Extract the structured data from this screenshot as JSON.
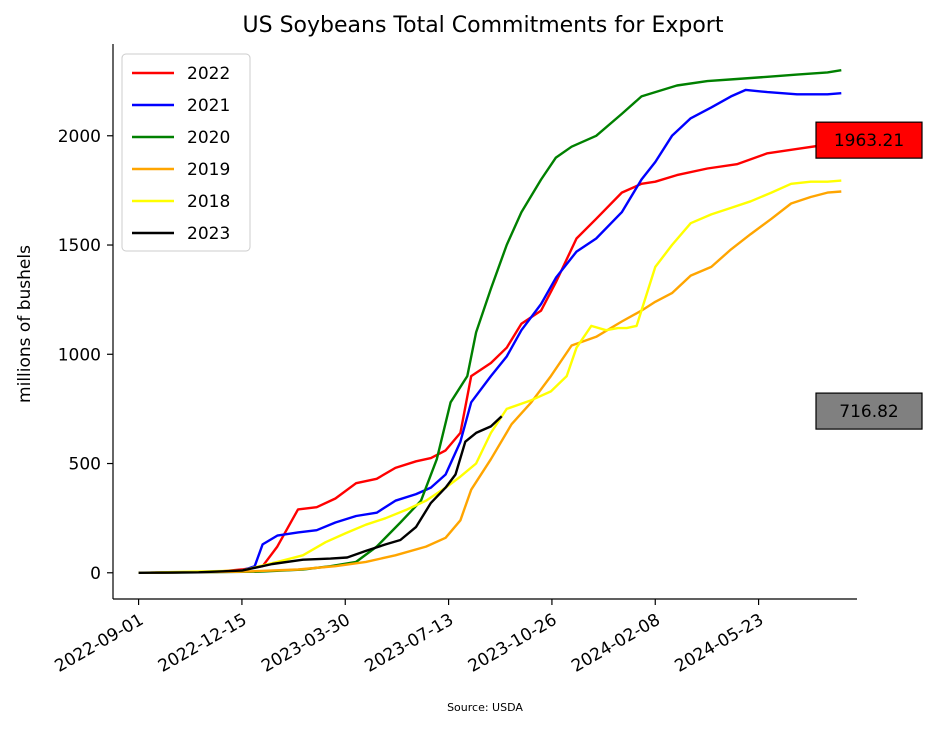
{
  "chart_data": {
    "type": "line",
    "title": "US Soybeans Total Commitments for Export",
    "ylabel": "millions of bushels",
    "xlabel": "",
    "source": "Source: USDA",
    "ylim": [
      -120,
      2420
    ],
    "xlim": [
      "2022-08-06",
      "2024-08-31"
    ],
    "yticks": [
      0,
      500,
      1000,
      1500,
      2000
    ],
    "xticks": [
      "2022-09-01",
      "2022-12-15",
      "2023-03-30",
      "2023-07-13",
      "2023-10-26",
      "2024-02-08",
      "2024-05-23"
    ],
    "grid": false,
    "legend": "top-left",
    "series": [
      {
        "name": "2022",
        "color": "#ff0000",
        "x": [
          "2022-09-01",
          "2022-10-15",
          "2022-11-20",
          "2022-12-15",
          "2023-01-05",
          "2023-01-20",
          "2023-02-10",
          "2023-03-01",
          "2023-03-20",
          "2023-04-10",
          "2023-05-01",
          "2023-05-20",
          "2023-06-10",
          "2023-06-25",
          "2023-07-10",
          "2023-07-25",
          "2023-08-05",
          "2023-08-25",
          "2023-09-10",
          "2023-09-25",
          "2023-10-15",
          "2023-10-30",
          "2023-11-20",
          "2023-12-10",
          "2024-01-05",
          "2024-01-25",
          "2024-02-08",
          "2024-03-01",
          "2024-04-01",
          "2024-05-01",
          "2024-06-01",
          "2024-07-01",
          "2024-08-01",
          "2024-08-15"
        ],
        "values": [
          0,
          2,
          5,
          15,
          30,
          120,
          290,
          300,
          340,
          410,
          430,
          480,
          510,
          525,
          560,
          640,
          900,
          960,
          1030,
          1140,
          1200,
          1330,
          1530,
          1620,
          1740,
          1780,
          1790,
          1820,
          1850,
          1870,
          1920,
          1940,
          1960,
          1965
        ]
      },
      {
        "name": "2021",
        "color": "#0000ff",
        "x": [
          "2022-09-01",
          "2022-10-15",
          "2022-11-20",
          "2022-12-15",
          "2022-12-28",
          "2023-01-05",
          "2023-01-20",
          "2023-02-10",
          "2023-03-01",
          "2023-03-20",
          "2023-04-10",
          "2023-05-01",
          "2023-05-20",
          "2023-06-10",
          "2023-06-25",
          "2023-07-10",
          "2023-07-25",
          "2023-08-05",
          "2023-08-25",
          "2023-09-10",
          "2023-09-25",
          "2023-10-15",
          "2023-10-30",
          "2023-11-20",
          "2023-12-10",
          "2024-01-05",
          "2024-01-25",
          "2024-02-08",
          "2024-02-25",
          "2024-03-15",
          "2024-04-05",
          "2024-04-25",
          "2024-05-10",
          "2024-06-01",
          "2024-07-01",
          "2024-08-01",
          "2024-08-15"
        ],
        "values": [
          0,
          2,
          4,
          10,
          30,
          130,
          170,
          185,
          195,
          230,
          260,
          275,
          330,
          360,
          390,
          450,
          600,
          780,
          900,
          990,
          1110,
          1230,
          1350,
          1470,
          1530,
          1650,
          1800,
          1880,
          2000,
          2080,
          2130,
          2180,
          2210,
          2200,
          2190,
          2190,
          2195
        ]
      },
      {
        "name": "2020",
        "color": "#008000",
        "x": [
          "2022-09-01",
          "2022-11-01",
          "2023-01-01",
          "2023-02-15",
          "2023-03-15",
          "2023-04-10",
          "2023-05-01",
          "2023-05-25",
          "2023-06-15",
          "2023-07-01",
          "2023-07-15",
          "2023-08-01",
          "2023-08-10",
          "2023-08-25",
          "2023-09-10",
          "2023-09-25",
          "2023-10-15",
          "2023-10-30",
          "2023-11-15",
          "2023-12-10",
          "2024-01-05",
          "2024-01-25",
          "2024-02-08",
          "2024-03-01",
          "2024-04-01",
          "2024-05-01",
          "2024-06-01",
          "2024-07-01",
          "2024-08-01",
          "2024-08-15"
        ],
        "values": [
          0,
          2,
          5,
          15,
          30,
          50,
          120,
          230,
          330,
          520,
          780,
          900,
          1100,
          1300,
          1500,
          1650,
          1800,
          1900,
          1950,
          2000,
          2100,
          2180,
          2200,
          2230,
          2250,
          2260,
          2270,
          2280,
          2290,
          2300
        ]
      },
      {
        "name": "2019",
        "color": "#ffa500",
        "x": [
          "2022-09-01",
          "2022-12-15",
          "2023-02-10",
          "2023-03-20",
          "2023-04-20",
          "2023-05-20",
          "2023-06-20",
          "2023-07-10",
          "2023-07-25",
          "2023-08-05",
          "2023-08-25",
          "2023-09-15",
          "2023-10-05",
          "2023-10-25",
          "2023-11-15",
          "2023-12-10",
          "2024-01-05",
          "2024-01-25",
          "2024-02-08",
          "2024-02-25",
          "2024-03-15",
          "2024-04-05",
          "2024-04-25",
          "2024-05-15",
          "2024-06-05",
          "2024-06-25",
          "2024-07-15",
          "2024-08-01",
          "2024-08-15"
        ],
        "values": [
          0,
          5,
          15,
          30,
          50,
          80,
          120,
          160,
          240,
          380,
          520,
          680,
          780,
          900,
          1040,
          1080,
          1150,
          1200,
          1240,
          1280,
          1360,
          1400,
          1480,
          1550,
          1620,
          1690,
          1720,
          1740,
          1745
        ]
      },
      {
        "name": "2018",
        "color": "#ffff00",
        "x": [
          "2022-09-01",
          "2022-12-15",
          "2023-01-20",
          "2023-02-15",
          "2023-03-10",
          "2023-03-30",
          "2023-04-20",
          "2023-05-10",
          "2023-06-01",
          "2023-06-20",
          "2023-07-10",
          "2023-07-25",
          "2023-08-10",
          "2023-08-25",
          "2023-09-10",
          "2023-10-05",
          "2023-10-25",
          "2023-11-10",
          "2023-11-20",
          "2023-12-05",
          "2023-12-20",
          "2024-01-01",
          "2024-01-10",
          "2024-01-20",
          "2024-02-08",
          "2024-02-25",
          "2024-03-15",
          "2024-04-05",
          "2024-04-25",
          "2024-05-15",
          "2024-06-05",
          "2024-06-25",
          "2024-07-15",
          "2024-08-01",
          "2024-08-15"
        ],
        "values": [
          0,
          10,
          50,
          80,
          140,
          180,
          220,
          250,
          290,
          330,
          390,
          440,
          500,
          640,
          750,
          790,
          830,
          900,
          1030,
          1130,
          1110,
          1120,
          1120,
          1130,
          1400,
          1500,
          1600,
          1640,
          1670,
          1700,
          1740,
          1780,
          1790,
          1790,
          1795
        ]
      },
      {
        "name": "2023",
        "color": "#000000",
        "x": [
          "2022-09-01",
          "2022-11-01",
          "2022-12-15",
          "2023-01-15",
          "2023-02-15",
          "2023-03-15",
          "2023-04-01",
          "2023-04-20",
          "2023-05-10",
          "2023-05-25",
          "2023-06-10",
          "2023-06-25",
          "2023-07-10",
          "2023-07-20",
          "2023-07-30",
          "2023-08-10",
          "2023-08-25",
          "2023-09-05"
        ],
        "values": [
          0,
          2,
          10,
          40,
          60,
          65,
          70,
          100,
          130,
          150,
          210,
          320,
          390,
          450,
          600,
          640,
          670,
          716.82
        ]
      }
    ],
    "annotations": [
      {
        "text": "1963.21",
        "at_value": 1980,
        "background": "#ff0000"
      },
      {
        "text": "716.82",
        "at_value": 740,
        "background": "#808080"
      }
    ]
  }
}
